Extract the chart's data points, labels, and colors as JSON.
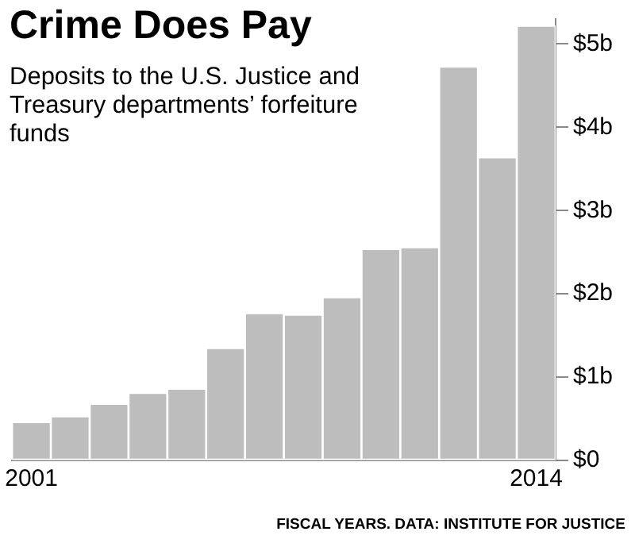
{
  "chart_data": {
    "type": "bar",
    "title": "Crime Does Pay",
    "subtitle": "Deposits to the U.S. Justice and Treasury departments’ forfeiture funds",
    "categories": [
      "2001",
      null,
      null,
      null,
      null,
      null,
      null,
      null,
      null,
      null,
      null,
      null,
      null,
      "2014"
    ],
    "values": [
      0.46,
      0.53,
      0.68,
      0.81,
      0.86,
      1.35,
      1.77,
      1.75,
      1.96,
      2.54,
      2.56,
      4.73,
      3.64,
      5.22
    ],
    "color": "#bdbdbd",
    "ylim": [
      0,
      5.3
    ],
    "yticks": [
      {
        "value": 0,
        "label": "$0"
      },
      {
        "value": 1,
        "label": "$1b"
      },
      {
        "value": 2,
        "label": "$2b"
      },
      {
        "value": 3,
        "label": "$3b"
      },
      {
        "value": 4,
        "label": "$4b"
      },
      {
        "value": 5,
        "label": "$5b"
      }
    ],
    "grid": false,
    "legend": false,
    "annotations": [
      "FISCAL YEARS. DATA: INSTITUTE FOR JUSTICE"
    ]
  }
}
